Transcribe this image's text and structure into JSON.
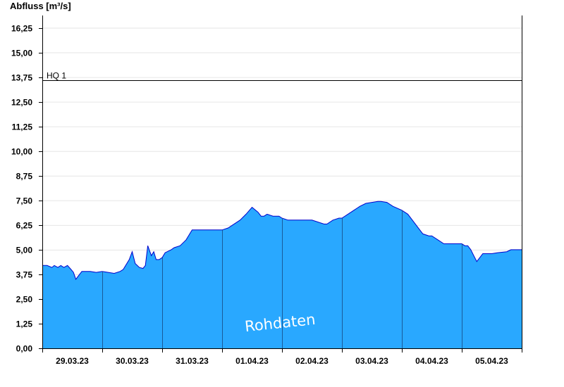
{
  "chart_data": {
    "type": "area",
    "ylabel": "Abfluss [m³/s]",
    "ylim": [
      0,
      16.875
    ],
    "yticks": [
      "0,00",
      "1,25",
      "2,50",
      "3,75",
      "5,00",
      "6,25",
      "7,50",
      "8,75",
      "10,00",
      "11,25",
      "12,50",
      "13,75",
      "15,00",
      "16,25"
    ],
    "ytick_values": [
      0,
      1.25,
      2.5,
      3.75,
      5.0,
      6.25,
      7.5,
      8.75,
      10.0,
      11.25,
      12.5,
      13.75,
      15.0,
      16.25
    ],
    "xlim_days": [
      0,
      8
    ],
    "xticks": [
      "29.03.23",
      "30.03.23",
      "31.03.23",
      "01.04.23",
      "02.04.23",
      "03.04.23",
      "04.04.23",
      "05.04.23"
    ],
    "grid": true,
    "fill_color": "#29a8ff",
    "line_color": "#0000cc",
    "reference_lines": [
      {
        "label": "HQ 1",
        "value": 13.6
      }
    ],
    "watermark": "Rohdaten",
    "series": [
      {
        "x": [
          0,
          0.08,
          0.16,
          0.2,
          0.26,
          0.31,
          0.36,
          0.42,
          0.48,
          0.52,
          0.56,
          0.61,
          0.66,
          0.72,
          0.8,
          0.9,
          1.0,
          1.1,
          1.2,
          1.3,
          1.35,
          1.45,
          1.5,
          1.55,
          1.62,
          1.68,
          1.72,
          1.76,
          1.82,
          1.86,
          1.9,
          1.95,
          2.0,
          2.05,
          2.15,
          2.2,
          2.3,
          2.4,
          2.5,
          2.55,
          2.6,
          2.65,
          2.7,
          2.75,
          2.85,
          3.0,
          3.1,
          3.2,
          3.3,
          3.4,
          3.5,
          3.6,
          3.65,
          3.7,
          3.75,
          3.85,
          3.95,
          4.0,
          4.1,
          4.2,
          4.5,
          4.7,
          4.75,
          4.85,
          4.95,
          5.0,
          5.1,
          5.2,
          5.3,
          5.4,
          5.5,
          5.6,
          5.65,
          5.75,
          5.85,
          6.0,
          6.1,
          6.2,
          6.3,
          6.35,
          6.45,
          6.5,
          6.6,
          6.7,
          6.8,
          6.9,
          7.0,
          7.05,
          7.1,
          7.15,
          7.2,
          7.25,
          7.35,
          7.5,
          7.6,
          7.75,
          7.82,
          8.0
        ],
        "y": [
          4.2,
          4.2,
          4.1,
          4.2,
          4.1,
          4.2,
          4.1,
          4.2,
          4.0,
          3.85,
          3.5,
          3.7,
          3.9,
          3.9,
          3.9,
          3.85,
          3.9,
          3.85,
          3.8,
          3.9,
          4.0,
          4.5,
          4.9,
          4.3,
          4.1,
          4.05,
          4.2,
          5.2,
          4.7,
          4.9,
          4.5,
          4.5,
          4.6,
          4.85,
          5.0,
          5.1,
          5.2,
          5.5,
          6.0,
          6.0,
          6.0,
          6.0,
          6.0,
          6.0,
          6.0,
          6.0,
          6.1,
          6.3,
          6.5,
          6.8,
          7.15,
          6.9,
          6.7,
          6.7,
          6.8,
          6.7,
          6.7,
          6.6,
          6.5,
          6.5,
          6.5,
          6.3,
          6.3,
          6.5,
          6.6,
          6.6,
          6.8,
          7.0,
          7.2,
          7.35,
          7.4,
          7.45,
          7.45,
          7.4,
          7.2,
          7.0,
          6.8,
          6.4,
          6.0,
          5.8,
          5.7,
          5.7,
          5.5,
          5.3,
          5.3,
          5.3,
          5.3,
          5.2,
          5.2,
          5.0,
          4.7,
          4.4,
          4.8,
          4.8,
          4.85,
          4.9,
          5.0,
          5.0
        ]
      }
    ]
  }
}
